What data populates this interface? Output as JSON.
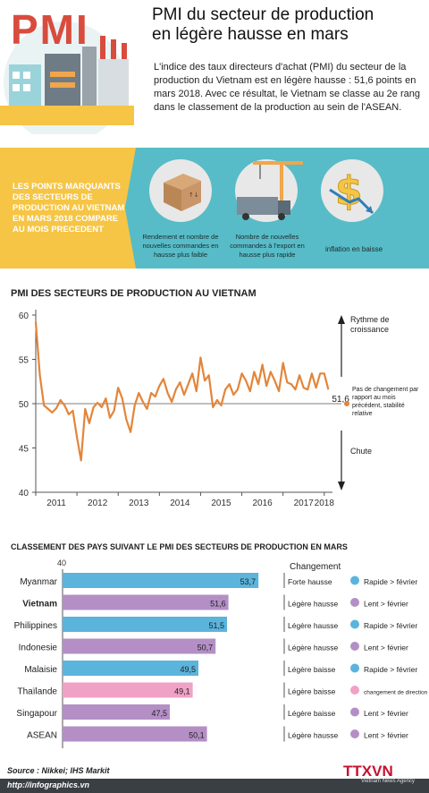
{
  "header": {
    "logo_text": "PMI",
    "title_line1": "PMI du secteur de production",
    "title_line2": "en légère hausse en mars",
    "intro": "L'indice des taux directeurs d'achat (PMI) du secteur de la production du Vietnam est en légère hausse : 51,6 points en mars 2018. Avec ce résultat, le Vietnam se classe au 2e rang dans le classement de la production au sein de l'ASEAN."
  },
  "highlights": {
    "label": "LES POINTS MARQUANTS DES SECTEURS DE PRODUCTION AU VIETNAM EN MARS 2018 COMPARE AU MOIS PRECEDENT",
    "items": [
      {
        "icon": "box-icon",
        "text": "Rendement et nombre de nouvelles commandes en hausse plus faible"
      },
      {
        "icon": "crane-truck-icon",
        "text": "Nombre de nouvelles commandes à l'export en hausse plus rapide"
      },
      {
        "icon": "dollar-down-icon",
        "text": "inflation en baisse"
      }
    ]
  },
  "colors": {
    "blue": "#5bb4dc",
    "purple": "#b48fc6",
    "pink": "#f0a1c6",
    "yellow": "#f6c545",
    "teal": "#57bcc7",
    "line": "#e3853a"
  },
  "chart_data": [
    {
      "type": "line",
      "title": "PMI DES SECTEURS DE PRODUCTION AU VIETNAM",
      "ylim": [
        40,
        60
      ],
      "yticks": [
        40,
        45,
        50,
        55,
        60
      ],
      "xticks": [
        "2011",
        "2012",
        "2013",
        "2014",
        "2015",
        "2016",
        "2017",
        "2018"
      ],
      "xlim": [
        2011.0,
        2018.2
      ],
      "reference_line": 50,
      "last_value_label": "51,6",
      "annotations": {
        "up": "Rythme de croissance",
        "neutral": "Pas de changement par rapport au mois précédent, stabilité relative",
        "down": "Chute"
      },
      "series": [
        {
          "values": [
            [
              2011.0,
              59.2
            ],
            [
              2011.1,
              53.2
            ],
            [
              2011.2,
              49.8
            ],
            [
              2011.3,
              49.4
            ],
            [
              2011.4,
              49.0
            ],
            [
              2011.5,
              49.5
            ],
            [
              2011.6,
              50.4
            ],
            [
              2011.7,
              49.8
            ],
            [
              2011.8,
              48.8
            ],
            [
              2011.9,
              49.2
            ],
            [
              2012.0,
              46.2
            ],
            [
              2012.1,
              43.6
            ],
            [
              2012.2,
              49.4
            ],
            [
              2012.3,
              47.8
            ],
            [
              2012.4,
              49.6
            ],
            [
              2012.5,
              50.1
            ],
            [
              2012.6,
              49.6
            ],
            [
              2012.7,
              50.6
            ],
            [
              2012.8,
              48.4
            ],
            [
              2012.9,
              49.2
            ],
            [
              2013.0,
              51.8
            ],
            [
              2013.1,
              50.6
            ],
            [
              2013.2,
              48.2
            ],
            [
              2013.3,
              46.8
            ],
            [
              2013.4,
              49.8
            ],
            [
              2013.5,
              51.2
            ],
            [
              2013.6,
              50.2
            ],
            [
              2013.7,
              49.4
            ],
            [
              2013.8,
              51.2
            ],
            [
              2013.9,
              50.8
            ],
            [
              2014.0,
              52.0
            ],
            [
              2014.1,
              52.8
            ],
            [
              2014.2,
              51.2
            ],
            [
              2014.3,
              50.2
            ],
            [
              2014.4,
              51.6
            ],
            [
              2014.5,
              52.4
            ],
            [
              2014.6,
              51.0
            ],
            [
              2014.7,
              52.2
            ],
            [
              2014.8,
              53.4
            ],
            [
              2014.9,
              51.4
            ],
            [
              2015.0,
              55.2
            ],
            [
              2015.1,
              52.6
            ],
            [
              2015.2,
              53.2
            ],
            [
              2015.3,
              49.6
            ],
            [
              2015.4,
              50.4
            ],
            [
              2015.5,
              49.8
            ],
            [
              2015.6,
              51.6
            ],
            [
              2015.7,
              52.2
            ],
            [
              2015.8,
              51.0
            ],
            [
              2015.9,
              51.6
            ],
            [
              2016.0,
              53.4
            ],
            [
              2016.1,
              52.6
            ],
            [
              2016.2,
              51.4
            ],
            [
              2016.3,
              53.6
            ],
            [
              2016.4,
              52.2
            ],
            [
              2016.5,
              54.4
            ],
            [
              2016.6,
              52.0
            ],
            [
              2016.7,
              53.6
            ],
            [
              2016.8,
              52.6
            ],
            [
              2016.9,
              51.4
            ],
            [
              2017.0,
              54.6
            ],
            [
              2017.1,
              52.4
            ],
            [
              2017.2,
              52.2
            ],
            [
              2017.3,
              51.6
            ],
            [
              2017.4,
              53.2
            ],
            [
              2017.5,
              51.8
            ],
            [
              2017.6,
              51.6
            ],
            [
              2017.7,
              53.4
            ],
            [
              2017.8,
              51.8
            ],
            [
              2017.9,
              53.4
            ],
            [
              2018.0,
              53.4
            ],
            [
              2018.1,
              51.6
            ]
          ]
        }
      ]
    },
    {
      "type": "bar",
      "title": "CLASSEMENT DES PAYS SUIVANT LE PMI DES SECTEURS DE PRODUCTION EN MARS",
      "xmin_label": "40",
      "xlim": [
        40,
        55
      ],
      "change_header": "Changement",
      "rows": [
        {
          "country": "Myanmar",
          "value": 53.7,
          "value_label": "53,7",
          "change": "Forte hausse",
          "trend": "Rapide > février",
          "color": "blue",
          "highlight": false
        },
        {
          "country": "Vietnam",
          "value": 51.6,
          "value_label": "51,6",
          "change": "Légère hausse",
          "trend": "Lent > février",
          "color": "purple",
          "highlight": true
        },
        {
          "country": "Philippines",
          "value": 51.5,
          "value_label": "51,5",
          "change": "Légère hausse",
          "trend": "Rapide > février",
          "color": "blue",
          "highlight": false
        },
        {
          "country": "Indonesie",
          "value": 50.7,
          "value_label": "50,7",
          "change": "Légère hausse",
          "trend": "Lent > février",
          "color": "purple",
          "highlight": false
        },
        {
          "country": "Malaisie",
          "value": 49.5,
          "value_label": "49,5",
          "change": "Légère baisse",
          "trend": "Rapide > février",
          "color": "blue",
          "highlight": false
        },
        {
          "country": "Thaïlande",
          "value": 49.1,
          "value_label": "49,1",
          "change": "Légère baisse",
          "trend": "changement de direction",
          "color": "pink",
          "highlight": false
        },
        {
          "country": "Singapour",
          "value": 47.5,
          "value_label": "47,5",
          "change": "Légère baisse",
          "trend": "Lent > février",
          "color": "purple",
          "highlight": false
        },
        {
          "country": "ASEAN",
          "value": 50.1,
          "value_label": "50,1",
          "change": "Légère hausse",
          "trend": "Lent > février",
          "color": "purple",
          "highlight": false
        }
      ]
    }
  ],
  "footer": {
    "source": "Source : Nikkei; IHS Markit",
    "url": "http://infographics.vn",
    "logo": "TTXVN",
    "logo_sub": "Vietnam News Agency"
  }
}
